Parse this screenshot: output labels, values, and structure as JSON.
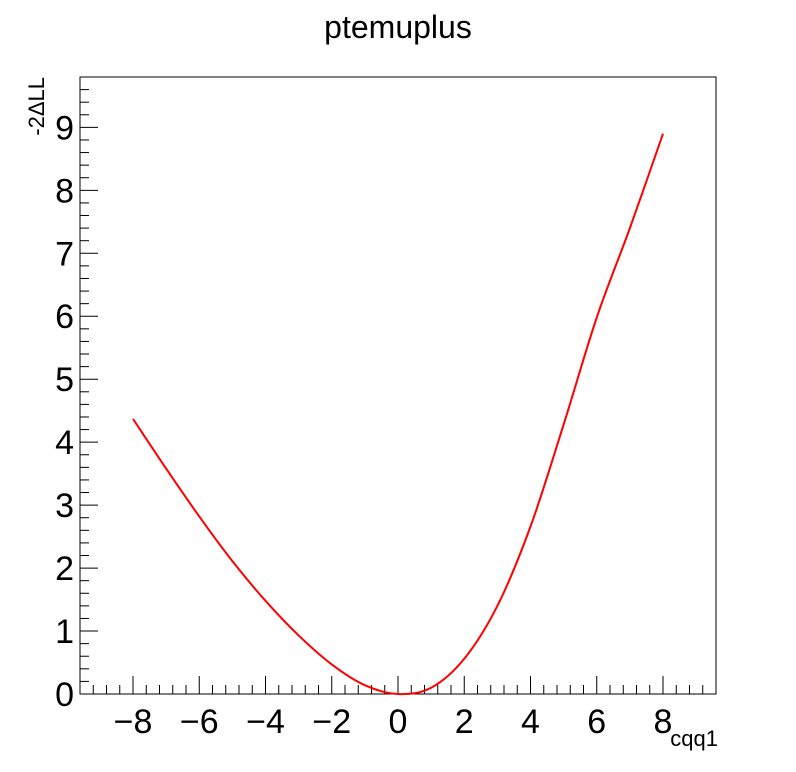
{
  "chart_data": {
    "type": "line",
    "title": "ptemuplus",
    "xlabel": "cqq1",
    "ylabel": "-2ΔLL",
    "xlim": [
      -9.6,
      9.6
    ],
    "ylim": [
      0,
      9.8
    ],
    "x_ticks": [
      -8,
      -6,
      -4,
      -2,
      0,
      2,
      4,
      6,
      8
    ],
    "x_tick_labels": [
      "−8",
      "−6",
      "−4",
      "−2",
      "0",
      "2",
      "4",
      "6",
      "8"
    ],
    "y_ticks": [
      0,
      1,
      2,
      3,
      4,
      5,
      6,
      7,
      8,
      9
    ],
    "y_tick_labels": [
      "0",
      "1",
      "2",
      "3",
      "4",
      "5",
      "6",
      "7",
      "8",
      "9"
    ],
    "grid": false,
    "series": [
      {
        "color": "#ff0000",
        "x": [
          -8,
          -7,
          -6,
          -5,
          -4,
          -3,
          -2,
          -1,
          0,
          1,
          2,
          3,
          4,
          5,
          6,
          7,
          8
        ],
        "y": [
          4.37,
          3.58,
          2.82,
          2.11,
          1.48,
          0.93,
          0.47,
          0.14,
          0.0,
          0.1,
          0.56,
          1.4,
          2.66,
          4.28,
          5.98,
          7.4,
          8.9
        ]
      }
    ]
  }
}
